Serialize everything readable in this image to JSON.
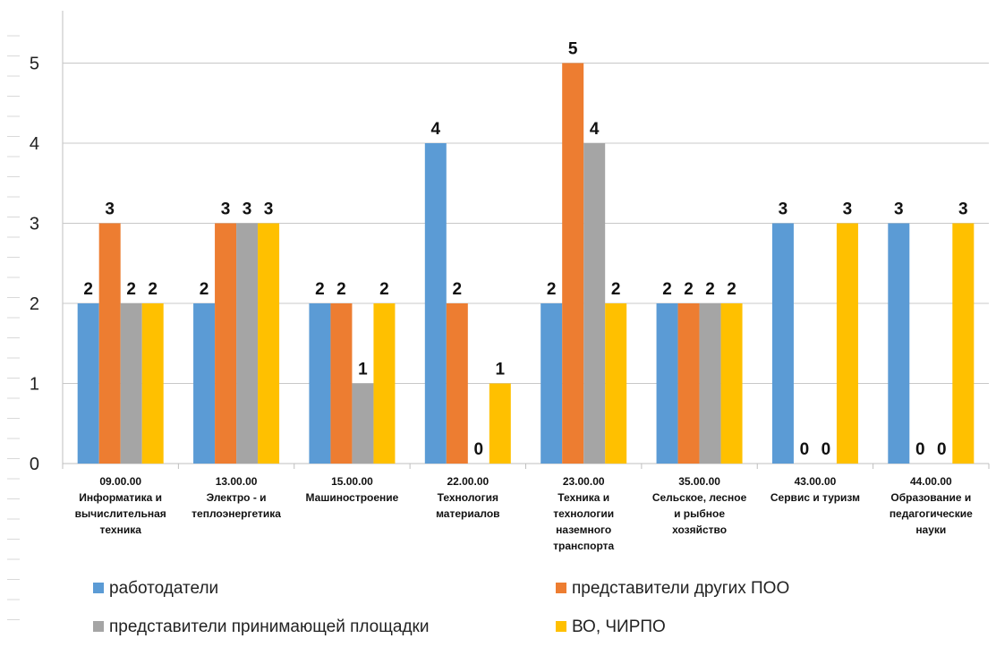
{
  "chart_data": {
    "type": "bar",
    "categories": [
      "09.00.00 Информатика и вычислительная техника",
      "13.00.00 Электро - и теплоэнергетика",
      "15.00.00 Машиностроение",
      "22.00.00 Технология материалов",
      "23.00.00 Техника и технологии наземного транспорта",
      "35.00.00 Сельское, лесное и рыбное хозяйство",
      "43.00.00 Сервис и туризм",
      "44.00.00 Образование и педагогические науки"
    ],
    "category_lines": [
      [
        "09.00.00",
        "Информатика и",
        "вычислительная",
        "техника"
      ],
      [
        "13.00.00",
        "Электро - и",
        "теплоэнергетика"
      ],
      [
        "15.00.00",
        "Машиностроение"
      ],
      [
        "22.00.00",
        "Технология",
        "материалов"
      ],
      [
        "23.00.00",
        "Техника и",
        "технологии",
        "наземного",
        "транспорта"
      ],
      [
        "35.00.00",
        "Сельское, лесное",
        "и рыбное",
        "хозяйство"
      ],
      [
        "43.00.00",
        "Сервис и туризм"
      ],
      [
        "44.00.00",
        "Образование и",
        "педагогические",
        "науки"
      ]
    ],
    "series": [
      {
        "name": "работодатели",
        "color": "#5B9BD5",
        "values": [
          2,
          2,
          2,
          4,
          2,
          2,
          3,
          3
        ]
      },
      {
        "name": "представители других ПОО",
        "color": "#ED7D31",
        "values": [
          3,
          3,
          2,
          2,
          5,
          2,
          0,
          0
        ]
      },
      {
        "name": "представители принимающей площадки",
        "color": "#A5A5A5",
        "values": [
          2,
          3,
          1,
          0,
          4,
          2,
          0,
          0
        ]
      },
      {
        "name": "ВО, ЧИРПО",
        "color": "#FFC000",
        "values": [
          2,
          3,
          2,
          1,
          2,
          2,
          3,
          3
        ]
      }
    ],
    "data_labels": [
      [
        "2",
        "3",
        "2",
        "2"
      ],
      [
        "2",
        "3",
        "3",
        "3"
      ],
      [
        "2",
        "2",
        "1",
        "2"
      ],
      [
        "4",
        "2",
        "0",
        "1"
      ],
      [
        "2",
        "5",
        "4",
        "2"
      ],
      [
        "2",
        "2",
        "2",
        "2"
      ],
      [
        "3",
        "0",
        "0",
        "3"
      ],
      [
        "3",
        "0",
        "0",
        "3"
      ]
    ],
    "y_ticks": [
      "0",
      "1",
      "2",
      "3",
      "4",
      "5"
    ],
    "ylim": [
      0,
      5.6
    ],
    "grid": true,
    "legend_position": "bottom",
    "title": "",
    "xlabel": "",
    "ylabel": ""
  }
}
